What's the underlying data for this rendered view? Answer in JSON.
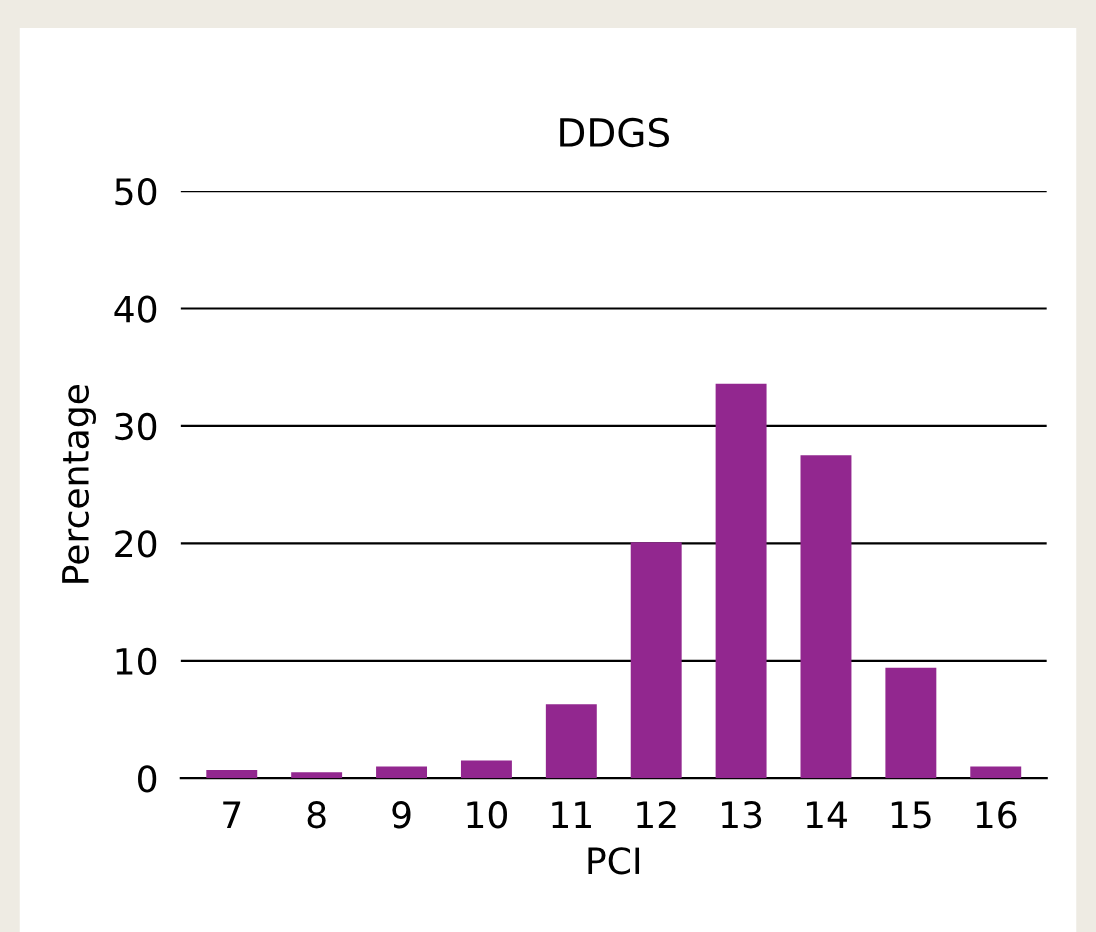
{
  "chart_data": {
    "type": "bar",
    "title": "DDGS",
    "xlabel": "PCI",
    "ylabel": "Percentage",
    "categories": [
      "7",
      "8",
      "9",
      "10",
      "11",
      "12",
      "13",
      "14",
      "15",
      "16"
    ],
    "values": [
      0.7,
      0.5,
      1.0,
      1.5,
      6.3,
      20.1,
      33.6,
      27.5,
      9.4,
      1.0
    ],
    "color": "#92278f",
    "ylim": [
      0,
      50
    ],
    "yticks": [
      0,
      10,
      20,
      30,
      40,
      50
    ],
    "grid": "y"
  }
}
